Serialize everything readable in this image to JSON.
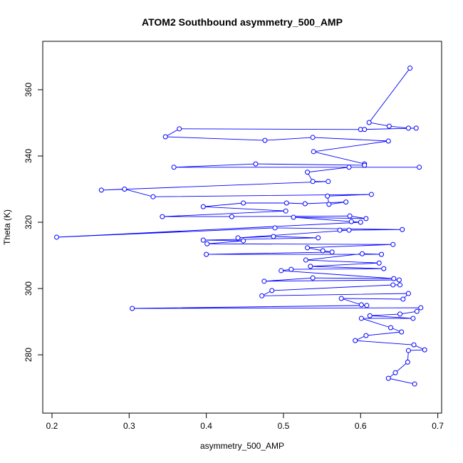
{
  "chart_data": {
    "type": "line",
    "markers": "open-circle",
    "title": "ATOM2 Southbound asymmetry_500_AMP",
    "x_label": "asymmetry_500_AMP",
    "y_label": "Theta (K)",
    "xlim": [
      0.188,
      0.705
    ],
    "ylim": [
      262.4,
      374.6
    ],
    "xticks": [
      0.2,
      0.3,
      0.4,
      0.5,
      0.6,
      0.7
    ],
    "yticks": [
      280,
      300,
      320,
      340,
      360
    ],
    "grid": false,
    "series": [
      {
        "color": "#0000ff",
        "x": [
          0.664,
          0.611,
          0.637,
          0.662,
          0.672,
          0.6,
          0.605,
          0.365,
          0.347,
          0.476,
          0.538,
          0.636,
          0.539,
          0.605,
          0.605,
          0.464,
          0.358,
          0.676,
          0.585,
          0.531,
          0.538,
          0.558,
          0.264,
          0.294,
          0.331,
          0.614,
          0.557,
          0.559,
          0.581,
          0.528,
          0.504,
          0.448,
          0.396,
          0.503,
          0.343,
          0.433,
          0.586,
          0.607,
          0.513,
          0.588,
          0.6,
          0.206,
          0.489,
          0.654,
          0.573,
          0.585,
          0.441,
          0.487,
          0.545,
          0.396,
          0.448,
          0.401,
          0.642,
          0.531,
          0.551,
          0.563,
          0.4,
          0.627,
          0.602,
          0.529,
          0.624,
          0.535,
          0.63,
          0.51,
          0.497,
          0.643,
          0.538,
          0.475,
          0.65,
          0.651,
          0.642,
          0.485,
          0.472,
          0.662,
          0.655,
          0.575,
          0.601,
          0.608,
          0.304,
          0.678,
          0.673,
          0.651,
          0.612,
          0.668,
          0.601,
          0.639,
          0.653,
          0.607,
          0.593,
          0.669,
          0.683,
          0.662,
          0.661,
          0.645,
          0.636,
          0.67
        ],
        "y": [
          366.5,
          350.1,
          349,
          348.4,
          348.4,
          348,
          348,
          348.2,
          345.8,
          344.7,
          345.6,
          344.5,
          341.3,
          337.6,
          337.2,
          337.6,
          336.6,
          336.6,
          336.6,
          335.1,
          332.3,
          332.3,
          329.7,
          330,
          327.7,
          328.4,
          327.9,
          325.4,
          326.1,
          325.6,
          325.8,
          325.8,
          324.7,
          323.4,
          321.7,
          321.7,
          321.9,
          321.1,
          321.5,
          320.2,
          320,
          315.5,
          318.3,
          317.8,
          317.6,
          317.6,
          315.3,
          315.7,
          315.3,
          314.6,
          314.4,
          313.5,
          313.3,
          312.3,
          311.4,
          311,
          310.3,
          310.3,
          310.5,
          308.6,
          307.7,
          306.7,
          306,
          305.8,
          305.4,
          303,
          303.2,
          302.2,
          302.6,
          301.1,
          301.1,
          299.4,
          297.8,
          298.5,
          296.8,
          297,
          295.1,
          294.9,
          294,
          294.2,
          293.1,
          292.3,
          291.8,
          291,
          291,
          288.2,
          286.9,
          285.8,
          284.3,
          283,
          281.5,
          281.3,
          277.8,
          274.6,
          272.9,
          271.2
        ]
      }
    ]
  }
}
